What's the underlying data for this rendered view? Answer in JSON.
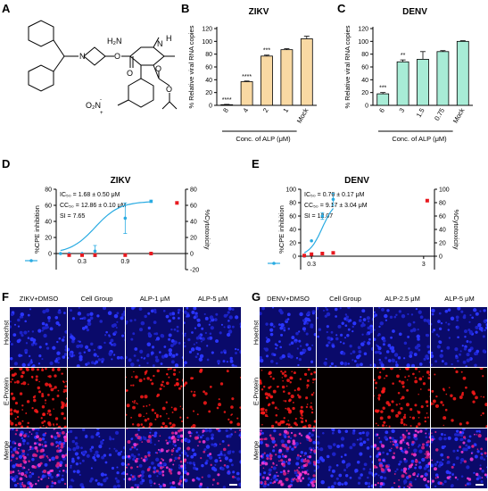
{
  "panels": {
    "A": "A",
    "B": "B",
    "C": "C",
    "D": "D",
    "E": "E",
    "F": "F",
    "G": "G"
  },
  "structure_labels": {
    "nitro": "O₂N",
    "amino": "H₂N",
    "nh": "N",
    "h": "H",
    "n_az": "N",
    "nitro_minus": "-",
    "nitro_plus": "+",
    "nitro_o": "O"
  },
  "chart_data": [
    {
      "id": "B",
      "type": "bar",
      "title": "ZIKV",
      "ylabel": "% Relative viral RNA copies",
      "xlabel": "Conc. of ALP (μM)",
      "categories": [
        "8",
        "4",
        "2",
        "1",
        "Mock"
      ],
      "values": [
        1,
        37,
        77,
        87,
        104
      ],
      "errors": [
        0.5,
        1,
        1.5,
        1.5,
        4
      ],
      "significance": [
        "****",
        "****",
        "***",
        "",
        ""
      ],
      "ylim": [
        0,
        120
      ],
      "yticks": [
        "0",
        "20",
        "40",
        "60",
        "80",
        "100",
        "120"
      ],
      "color": "#f9d9a3",
      "edge": "#000000"
    },
    {
      "id": "C",
      "type": "bar",
      "title": "DENV",
      "ylabel": "% Relative viral RNA copies",
      "xlabel": "Conc. of ALP (μM)",
      "categories": [
        "6",
        "3",
        "1.5",
        "0.75",
        "Mock"
      ],
      "values": [
        18,
        68,
        72,
        84,
        100
      ],
      "errors": [
        2,
        3,
        12,
        1.5,
        1
      ],
      "significance": [
        "***",
        "**",
        "",
        "",
        ""
      ],
      "ylim": [
        0,
        120
      ],
      "yticks": [
        "0",
        "20",
        "40",
        "60",
        "80",
        "100",
        "120"
      ],
      "color": "#a8ecd6",
      "edge": "#000000"
    },
    {
      "id": "D",
      "type": "scatter",
      "title": "ZIKV",
      "ylabel": "%CPE inhibition",
      "y2label": "%Cytotoxicity",
      "xlabel": "ALP concentration, μM",
      "xticks": [
        "0.3",
        "0.9"
      ],
      "yticks": [
        "0",
        "20",
        "40",
        "60",
        "80"
      ],
      "y2ticks": [
        "-20",
        "0",
        "20",
        "40",
        "60",
        "80"
      ],
      "annotations": [
        "IC₅₀ = 1.68 ± 0.50 μM",
        "CC₅₀ = 12.86 ± 0.10 μM",
        "SI = 7.65"
      ],
      "inhibition": [
        {
          "x": 0.1,
          "y": 0,
          "err": 0.5
        },
        {
          "x": 0.3,
          "y": 0,
          "err": 0.5
        },
        {
          "x": 0.6,
          "y": 0,
          "err": 1
        },
        {
          "x": 0.9,
          "y": 3,
          "err": 7
        },
        {
          "x": 1.6,
          "y": 44,
          "err": 19
        },
        {
          "x": 2.2,
          "y": 65,
          "err": 1.5
        }
      ],
      "cytotoxicity": [
        {
          "x": 0.3,
          "y": -2
        },
        {
          "x": 0.6,
          "y": -2
        },
        {
          "x": 0.9,
          "y": -2
        },
        {
          "x": 1.6,
          "y": -2
        },
        {
          "x": 2.2,
          "y": 0
        },
        {
          "x": 2.8,
          "y": 63
        }
      ],
      "inhibition_color": "#29abe2",
      "cytotoxicity_color": "#e8191f"
    },
    {
      "id": "E",
      "type": "scatter",
      "title": "DENV",
      "ylabel": "%CPE inhibition",
      "y2label": "%Cytotoxicity",
      "xlabel": "ALP concentration, μM",
      "xticks": [
        "0.3",
        "3"
      ],
      "yticks": [
        "0",
        "20",
        "40",
        "60",
        "80",
        "100"
      ],
      "y2ticks": [
        "0",
        "20",
        "40",
        "60",
        "80",
        "100"
      ],
      "annotations": [
        "IC₅₀ = 0.76 ± 0.17 μM",
        "CC₅₀ = 9.17 ± 3.04 μM",
        "SI = 12.07"
      ],
      "inhibition": [
        {
          "x": 0.1,
          "y": 0,
          "err": 0.5
        },
        {
          "x": 0.3,
          "y": 23,
          "err": 1
        },
        {
          "x": 0.6,
          "y": 60,
          "err": 5
        },
        {
          "x": 0.9,
          "y": 85,
          "err": 9
        }
      ],
      "cytotoxicity": [
        {
          "x": 0.1,
          "y": 1
        },
        {
          "x": 0.3,
          "y": 3
        },
        {
          "x": 0.6,
          "y": 4
        },
        {
          "x": 0.9,
          "y": 5
        },
        {
          "x": 3.5,
          "y": 83
        }
      ],
      "inhibition_color": "#29abe2",
      "cytotoxicity_color": "#e8191f"
    }
  ],
  "micrographs": {
    "F": {
      "columns": [
        "ZIKV+DMSO",
        "Cell Group",
        "ALP-1 μM",
        "ALP-5 μM"
      ],
      "rows": [
        "Hoechst",
        "E-Protein",
        "Merge"
      ]
    },
    "G": {
      "columns": [
        "DENV+DMSO",
        "Cell Group",
        "ALP-2.5 μM",
        "ALP-5 μM"
      ],
      "rows": [
        "Hoechst",
        "E-Protein",
        "Merge"
      ]
    }
  }
}
